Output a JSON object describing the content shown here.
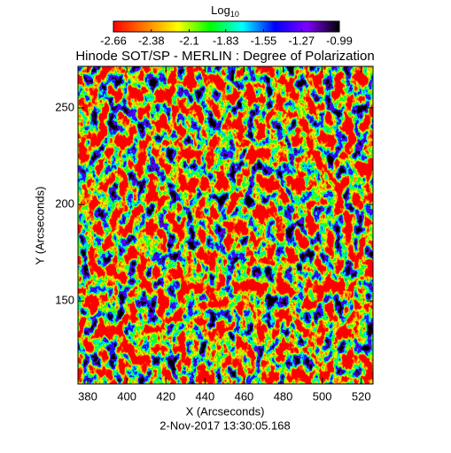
{
  "chart_data": {
    "type": "heatmap",
    "title": "Hinode SOT/SP - MERLIN : Degree of Polarization",
    "xlabel": "X (Arcseconds)",
    "ylabel": "Y (Arcseconds)",
    "footer": "2-Nov-2017 13:30:05.168",
    "xlim": [
      375,
      526
    ],
    "ylim": [
      107,
      271.5
    ],
    "xticks": [
      380,
      400,
      420,
      440,
      460,
      480,
      500,
      520
    ],
    "yticks": [
      150,
      200,
      250
    ],
    "colorbar": {
      "label": "Log",
      "label_sub": "10",
      "lim": [
        -2.66,
        -0.99
      ],
      "ticks": [
        -2.66,
        -2.38,
        -2.1,
        -1.83,
        -1.55,
        -1.27,
        -0.99
      ],
      "colormap": [
        "#ff0000",
        "#ff7f00",
        "#ffff00",
        "#00ff00",
        "#00ffff",
        "#0000ff",
        "#7f00ff",
        "#000000"
      ]
    }
  }
}
